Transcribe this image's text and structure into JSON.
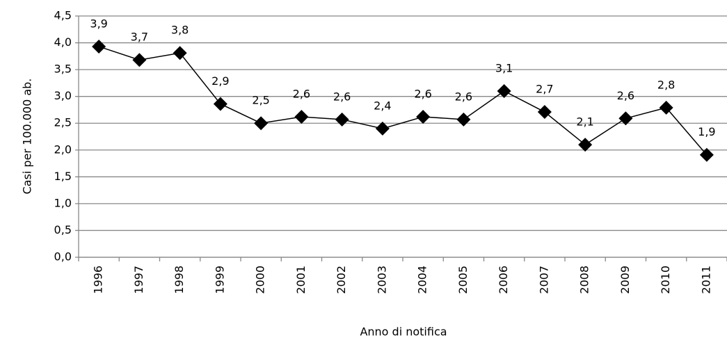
{
  "chart_data": {
    "type": "line",
    "x_label": "Anno di notifica",
    "y_label": "Casi per 100.000 ab.",
    "categories": [
      "1996",
      "1997",
      "1998",
      "1999",
      "2000",
      "2001",
      "2002",
      "2003",
      "2004",
      "2005",
      "2006",
      "2007",
      "2008",
      "2009",
      "2010",
      "2011"
    ],
    "series": [
      {
        "color": "#000000",
        "values": [
          3.93,
          3.68,
          3.81,
          2.86,
          2.5,
          2.62,
          2.57,
          2.4,
          2.62,
          2.57,
          3.1,
          2.71,
          2.1,
          2.59,
          2.79,
          1.91
        ],
        "value_labels": [
          "3,9",
          "3,7",
          "3,8",
          "2,9",
          "2,5",
          "2,6",
          "2,6",
          "2,4",
          "2,6",
          "2,6",
          "3,1",
          "2,7",
          "2,1",
          "2,6",
          "2,8",
          "1,9"
        ]
      }
    ],
    "ylim": [
      0,
      4.5
    ],
    "yticks": [
      {
        "value": 0,
        "label": "0,0"
      },
      {
        "value": 0.5,
        "label": "0,5"
      },
      {
        "value": 1,
        "label": "1,0"
      },
      {
        "value": 1.5,
        "label": "1,5"
      },
      {
        "value": 2,
        "label": "2,0"
      },
      {
        "value": 2.5,
        "label": "2,5"
      },
      {
        "value": 3,
        "label": "3,0"
      },
      {
        "value": 3.5,
        "label": "3,5"
      },
      {
        "value": 4,
        "label": "4,0"
      },
      {
        "value": 4.5,
        "label": "4,5"
      }
    ],
    "grid": true
  }
}
